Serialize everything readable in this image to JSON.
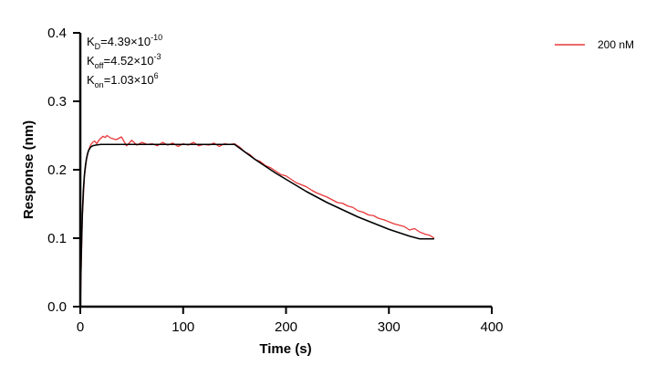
{
  "chart_data": {
    "type": "line",
    "xlabel": "Time (s)",
    "ylabel": "Response (nm)",
    "xlim": [
      0,
      400
    ],
    "ylim": [
      0,
      0.4
    ],
    "x_ticks": [
      "0",
      "100",
      "200",
      "300",
      "400"
    ],
    "y_ticks": [
      "0.0",
      "0.1",
      "0.2",
      "0.3",
      "0.4"
    ],
    "grid": false,
    "legend_position": "top-right",
    "annotations": {
      "kd": {
        "label": "K",
        "sub": "D",
        "value": "=4.39×10",
        "exp": "-10"
      },
      "koff": {
        "label": "K",
        "sub": "off",
        "value": "=4.52×10",
        "exp": "-3"
      },
      "kon": {
        "label": "K",
        "sub": "on",
        "value": "=1.03×10",
        "exp": "6"
      }
    },
    "series": [
      {
        "name": "200 nM",
        "color": "#e8393b",
        "style": "measured",
        "x": [
          0,
          2,
          4,
          6,
          8,
          10,
          12,
          14,
          16,
          18,
          20,
          22,
          24,
          26,
          28,
          30,
          35,
          40,
          45,
          50,
          55,
          60,
          65,
          70,
          75,
          80,
          85,
          90,
          95,
          100,
          105,
          110,
          115,
          120,
          125,
          130,
          135,
          140,
          145,
          150,
          155,
          160,
          165,
          170,
          175,
          180,
          185,
          190,
          195,
          200,
          205,
          210,
          215,
          220,
          225,
          230,
          235,
          240,
          245,
          250,
          255,
          260,
          265,
          270,
          275,
          280,
          285,
          290,
          295,
          300,
          305,
          310,
          315,
          320,
          325,
          330,
          335,
          340,
          344
        ],
        "y": [
          0.0,
          0.13,
          0.19,
          0.215,
          0.228,
          0.236,
          0.24,
          0.242,
          0.238,
          0.243,
          0.246,
          0.249,
          0.247,
          0.25,
          0.248,
          0.246,
          0.244,
          0.248,
          0.235,
          0.243,
          0.236,
          0.24,
          0.237,
          0.238,
          0.235,
          0.24,
          0.236,
          0.239,
          0.234,
          0.238,
          0.236,
          0.24,
          0.235,
          0.237,
          0.236,
          0.239,
          0.234,
          0.238,
          0.237,
          0.238,
          0.233,
          0.226,
          0.222,
          0.215,
          0.212,
          0.206,
          0.203,
          0.198,
          0.193,
          0.191,
          0.186,
          0.181,
          0.178,
          0.175,
          0.17,
          0.166,
          0.163,
          0.16,
          0.156,
          0.152,
          0.151,
          0.147,
          0.145,
          0.14,
          0.138,
          0.134,
          0.133,
          0.129,
          0.127,
          0.124,
          0.121,
          0.119,
          0.117,
          0.112,
          0.114,
          0.109,
          0.106,
          0.104,
          0.1
        ]
      },
      {
        "style": "fit",
        "color": "#000000",
        "x": [
          0,
          1,
          2,
          3,
          4,
          5,
          6,
          7,
          8,
          10,
          12,
          15,
          20,
          30,
          60,
          100,
          150,
          160,
          170,
          180,
          190,
          200,
          210,
          220,
          230,
          240,
          250,
          260,
          270,
          280,
          290,
          300,
          310,
          320,
          330,
          344
        ],
        "y": [
          0.0,
          0.08,
          0.135,
          0.17,
          0.192,
          0.206,
          0.216,
          0.223,
          0.228,
          0.233,
          0.235,
          0.236,
          0.237,
          0.237,
          0.237,
          0.237,
          0.237,
          0.226,
          0.215,
          0.205,
          0.195,
          0.186,
          0.177,
          0.168,
          0.16,
          0.152,
          0.145,
          0.138,
          0.131,
          0.125,
          0.119,
          0.113,
          0.108,
          0.103,
          0.099,
          0.099
        ]
      }
    ]
  }
}
